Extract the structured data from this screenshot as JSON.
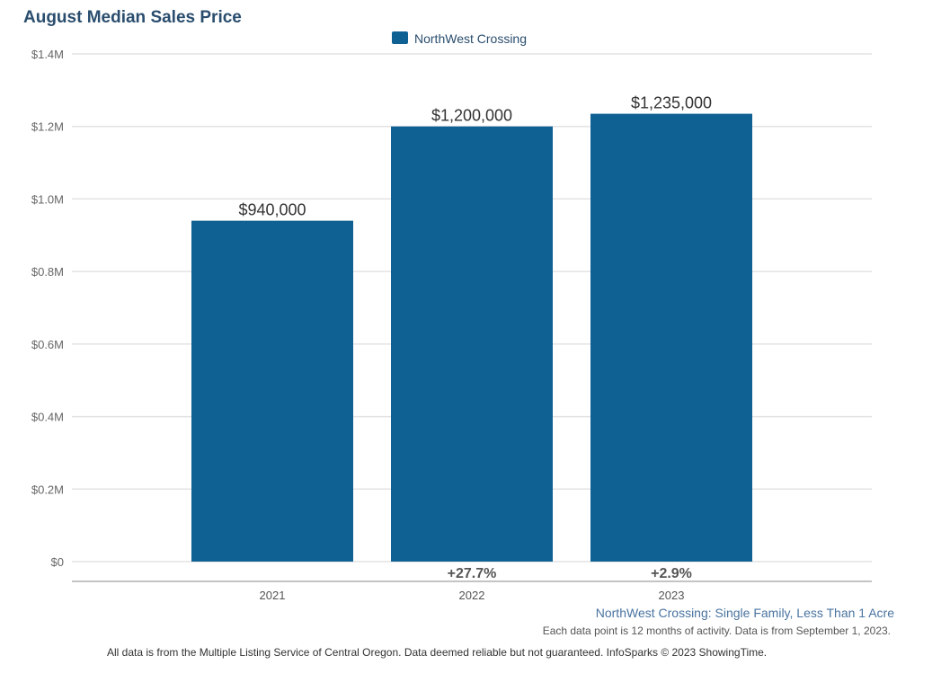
{
  "chart_data": {
    "type": "bar",
    "title": "August Median Sales Price",
    "categories": [
      "2021",
      "2022",
      "2023"
    ],
    "series": [
      {
        "name": "NorthWest Crossing",
        "values": [
          940000,
          1200000,
          1235000
        ],
        "color": "#0f6193"
      }
    ],
    "data_labels": [
      "$940,000",
      "$1,200,000",
      "$1,235,000"
    ],
    "change_labels": [
      "",
      "+27.7%",
      "+2.9%"
    ],
    "yticks": [
      0,
      200000,
      400000,
      600000,
      800000,
      1000000,
      1200000,
      1400000
    ],
    "ytick_labels": [
      "$0",
      "$0.2M",
      "$0.4M",
      "$0.6M",
      "$0.8M",
      "$1.0M",
      "$1.2M",
      "$1.4M"
    ],
    "ylim": [
      0,
      1400000
    ],
    "grid": true,
    "legend_placement": "top-center"
  },
  "footer": {
    "subtitle": "NorthWest Crossing: Single Family, Less Than 1 Acre",
    "note": "Each data point is 12 months of activity. Data is from September 1, 2023.",
    "disclaimer": "All data is from the Multiple Listing Service of Central Oregon. Data deemed reliable but not guaranteed. InfoSparks © 2023 ShowingTime."
  }
}
